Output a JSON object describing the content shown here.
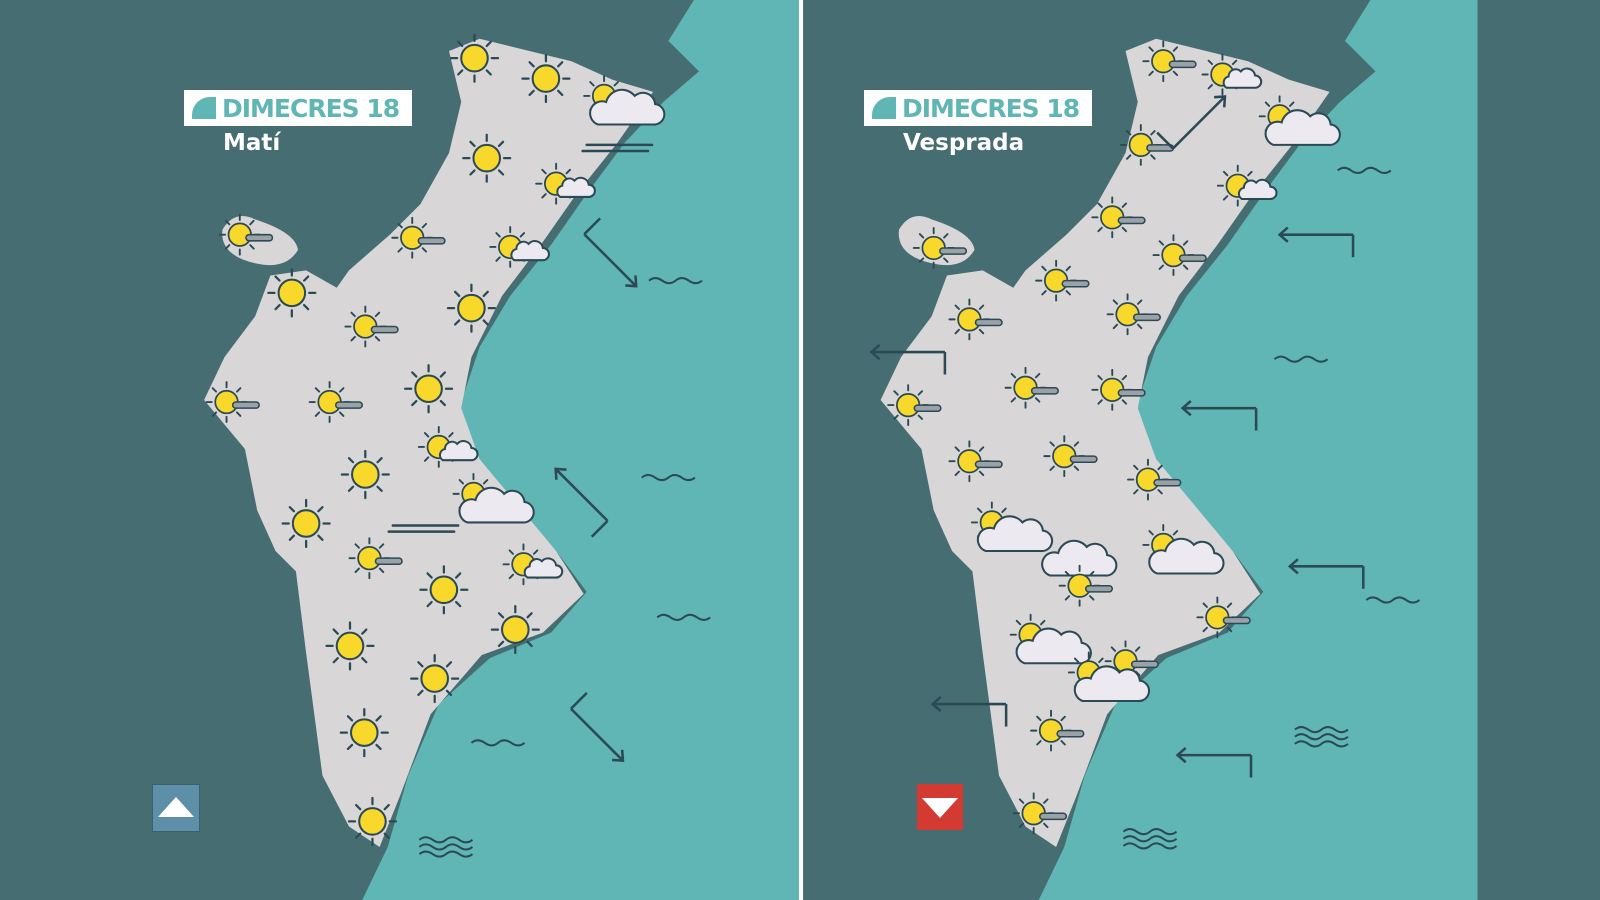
{
  "colors": {
    "background": "#466d72",
    "sea": "#5fb6b4",
    "land": "#d8d6d6",
    "sun": "#f7d82b",
    "outline": "#2c4a55",
    "divider": "#ffffff",
    "trend_up": "#5e8fa8",
    "trend_down": "#d23a32"
  },
  "panels": [
    {
      "day_label": "DIMECRES 18",
      "period": "Matí",
      "trend": "up",
      "icons": [
        "sun",
        "sun",
        "sun-big-cloud",
        "sun",
        "sun-small-cloud",
        "sun-fog",
        "sun-fog",
        "sun-small-cloud",
        "sun",
        "sun-fog",
        "sun",
        "sun-fog",
        "sun-fog",
        "sun",
        "sun-small-cloud",
        "sun",
        "sun-big-cloud",
        "sun",
        "sun-fog",
        "sun-small-cloud",
        "sun",
        "sun",
        "sun",
        "sun",
        "sun",
        "sun",
        "fog",
        "fog"
      ],
      "wind": [
        "wind-arrow",
        "wind-arrow",
        "wind-arrow"
      ],
      "waves": [
        "calm-sea",
        "calm-sea",
        "calm-sea",
        "calm-sea",
        "rough-sea"
      ]
    },
    {
      "day_label": "DIMECRES 18",
      "period": "Vesprada",
      "trend": "down",
      "icons": [
        "sun-fog",
        "sun-small-cloud",
        "sun-big-cloud",
        "sun-fog",
        "sun-small-cloud",
        "sun-fog",
        "sun-fog",
        "sun-fog",
        "sun-fog",
        "sun-fog",
        "sun-fog",
        "sun-fog",
        "sun-fog",
        "sun-fog",
        "sun-fog",
        "sun-fog",
        "sun-fog",
        "sun-big-cloud",
        "cloud",
        "sun-fog",
        "sun-big-cloud",
        "sun-big-cloud",
        "sun-fog",
        "sun-fog",
        "sun-big-cloud",
        "sun-fog",
        "sun-fog"
      ],
      "wind": [
        "wind-arrow",
        "wind-arrow",
        "wind-arrow",
        "wind-arrow",
        "wind-arrow",
        "wind-arrow",
        "wind-arrow"
      ],
      "waves": [
        "calm-sea",
        "calm-sea",
        "calm-sea",
        "rough-sea",
        "rough-sea"
      ]
    }
  ]
}
